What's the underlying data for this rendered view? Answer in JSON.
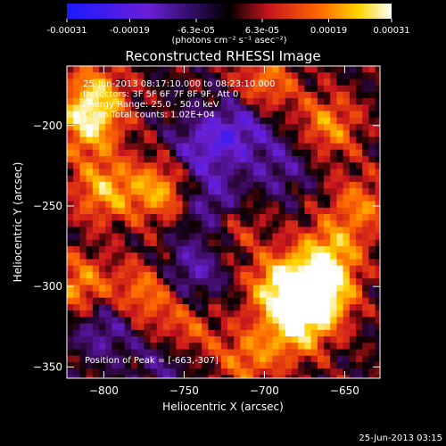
{
  "colorbar": {
    "ticks": [
      "-0.00031",
      "-0.00019",
      "-6.3e-05",
      "6.3e-05",
      "0.00019",
      "0.00031"
    ],
    "tick_values": [
      -0.00031,
      -0.00019,
      -6.3e-05,
      6.3e-05,
      0.00019,
      0.00031
    ],
    "range": [
      -0.00031,
      0.00031
    ],
    "units": "(photons cm⁻² s⁻¹ asec⁻²)",
    "colors": [
      "#1a1aff",
      "#6a1fd6",
      "#000000",
      "#c8141e",
      "#ff6a00",
      "#ffd400",
      "#ffffff"
    ]
  },
  "chart_data": {
    "type": "heatmap",
    "title": "Reconstructed RHESSI Image",
    "xlabel": "Heliocentric X (arcsec)",
    "ylabel": "Heliocentric Y (arcsec)",
    "xlim": [
      -823,
      -628
    ],
    "ylim": [
      -357,
      -163
    ],
    "xticks": [
      -800,
      -750,
      -700,
      -650
    ],
    "yticks": [
      -200,
      -250,
      -300,
      -350
    ],
    "annotations": [
      "25-Jun-2013 08:17:10.000 to 08:23:10.000",
      "Detectors: 3F 5F 6F 7F 8F 9F, Att 0",
      "Energy Range: 25.0 - 50.0 keV",
      "Clean     Total counts: 1.02E+04"
    ],
    "peak_label": "Position of Peak = [-663,-307]",
    "peak": [
      -663,
      -307
    ],
    "hotspots": [
      {
        "x": -665,
        "y": -305,
        "v": 1.0
      },
      {
        "x": -690,
        "y": -300,
        "v": 0.85
      },
      {
        "x": -680,
        "y": -325,
        "v": 0.75
      },
      {
        "x": -660,
        "y": -280,
        "v": 0.7
      },
      {
        "x": -810,
        "y": -200,
        "v": 0.7
      },
      {
        "x": -800,
        "y": -240,
        "v": 0.65
      },
      {
        "x": -765,
        "y": -240,
        "v": 0.65
      },
      {
        "x": -815,
        "y": -300,
        "v": 0.6
      },
      {
        "x": -775,
        "y": -305,
        "v": 0.55
      },
      {
        "x": -805,
        "y": -180,
        "v": 0.6
      },
      {
        "x": -700,
        "y": -175,
        "v": 0.55
      },
      {
        "x": -660,
        "y": -200,
        "v": 0.55
      },
      {
        "x": -750,
        "y": -330,
        "v": 0.5
      },
      {
        "x": -720,
        "y": -260,
        "v": 0.45
      },
      {
        "x": -640,
        "y": -250,
        "v": 0.5
      },
      {
        "x": -710,
        "y": -345,
        "v": 0.5
      }
    ],
    "coldspots": [
      {
        "x": -730,
        "y": -250,
        "v": -0.6
      },
      {
        "x": -715,
        "y": -200,
        "v": -0.55
      },
      {
        "x": -740,
        "y": -215,
        "v": -0.5
      },
      {
        "x": -800,
        "y": -325,
        "v": -0.45
      },
      {
        "x": -760,
        "y": -345,
        "v": -0.4
      },
      {
        "x": -745,
        "y": -290,
        "v": -0.45
      },
      {
        "x": -690,
        "y": -225,
        "v": -0.35
      }
    ]
  },
  "footer": {
    "timestamp": "25-Jun-2013 03:15"
  }
}
